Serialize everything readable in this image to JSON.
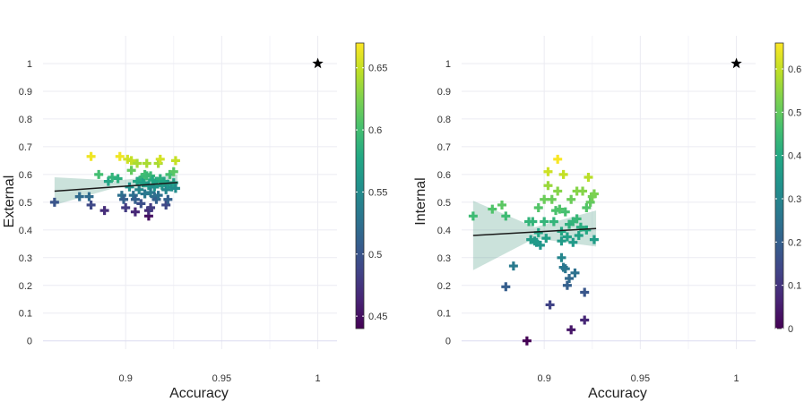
{
  "chart_data": [
    {
      "type": "scatter",
      "xlabel": "Accuracy",
      "ylabel": "External",
      "xlim": [
        0.857,
        1.01
      ],
      "ylim": [
        -0.03,
        1.1
      ],
      "x_ticks": [
        {
          "value": 0.9,
          "label": "0.9"
        },
        {
          "value": 0.95,
          "label": "0.95"
        },
        {
          "value": 1,
          "label": "1"
        }
      ],
      "y_ticks": [
        {
          "value": 0,
          "label": "0"
        },
        {
          "value": 0.1,
          "label": "0.1"
        },
        {
          "value": 0.2,
          "label": "0.2"
        },
        {
          "value": 0.3,
          "label": "0.3"
        },
        {
          "value": 0.4,
          "label": "0.4"
        },
        {
          "value": 0.5,
          "label": "0.5"
        },
        {
          "value": 0.6,
          "label": "0.6"
        },
        {
          "value": 0.7,
          "label": "0.7"
        },
        {
          "value": 0.8,
          "label": "0.8"
        },
        {
          "value": 0.9,
          "label": "0.9"
        },
        {
          "value": 1,
          "label": "1"
        }
      ],
      "colorbar": {
        "min": 0.44,
        "max": 0.67,
        "ticks": [
          {
            "value": 0.45,
            "label": "0.45"
          },
          {
            "value": 0.5,
            "label": "0.5"
          },
          {
            "value": 0.55,
            "label": "0.55"
          },
          {
            "value": 0.6,
            "label": "0.6"
          },
          {
            "value": 0.65,
            "label": "0.65"
          }
        ]
      },
      "ideal_point": {
        "x": 1,
        "y": 1,
        "marker": "star"
      },
      "trend": {
        "x": [
          0.863,
          0.927
        ],
        "y": [
          0.54,
          0.571
        ]
      },
      "band": {
        "x": [
          0.863,
          0.895,
          0.927
        ],
        "upper": [
          0.59,
          0.578,
          0.6
        ],
        "lower": [
          0.49,
          0.553,
          0.545
        ]
      },
      "points": [
        {
          "x": 0.863,
          "y": 0.5
        },
        {
          "x": 0.876,
          "y": 0.52
        },
        {
          "x": 0.881,
          "y": 0.52
        },
        {
          "x": 0.882,
          "y": 0.49
        },
        {
          "x": 0.882,
          "y": 0.665
        },
        {
          "x": 0.886,
          "y": 0.6
        },
        {
          "x": 0.889,
          "y": 0.47
        },
        {
          "x": 0.891,
          "y": 0.575
        },
        {
          "x": 0.893,
          "y": 0.59
        },
        {
          "x": 0.896,
          "y": 0.585
        },
        {
          "x": 0.897,
          "y": 0.665
        },
        {
          "x": 0.898,
          "y": 0.525
        },
        {
          "x": 0.899,
          "y": 0.51
        },
        {
          "x": 0.9,
          "y": 0.48
        },
        {
          "x": 0.901,
          "y": 0.655
        },
        {
          "x": 0.902,
          "y": 0.555
        },
        {
          "x": 0.903,
          "y": 0.615
        },
        {
          "x": 0.903,
          "y": 0.65
        },
        {
          "x": 0.904,
          "y": 0.525
        },
        {
          "x": 0.905,
          "y": 0.51
        },
        {
          "x": 0.905,
          "y": 0.465
        },
        {
          "x": 0.906,
          "y": 0.575
        },
        {
          "x": 0.906,
          "y": 0.64
        },
        {
          "x": 0.907,
          "y": 0.545
        },
        {
          "x": 0.908,
          "y": 0.495
        },
        {
          "x": 0.908,
          "y": 0.58
        },
        {
          "x": 0.909,
          "y": 0.59
        },
        {
          "x": 0.909,
          "y": 0.57
        },
        {
          "x": 0.91,
          "y": 0.53
        },
        {
          "x": 0.91,
          "y": 0.6
        },
        {
          "x": 0.911,
          "y": 0.595
        },
        {
          "x": 0.911,
          "y": 0.64
        },
        {
          "x": 0.912,
          "y": 0.45
        },
        {
          "x": 0.912,
          "y": 0.47
        },
        {
          "x": 0.912,
          "y": 0.56
        },
        {
          "x": 0.913,
          "y": 0.48
        },
        {
          "x": 0.913,
          "y": 0.535
        },
        {
          "x": 0.913,
          "y": 0.595
        },
        {
          "x": 0.914,
          "y": 0.58
        },
        {
          "x": 0.915,
          "y": 0.555
        },
        {
          "x": 0.915,
          "y": 0.52
        },
        {
          "x": 0.916,
          "y": 0.51
        },
        {
          "x": 0.916,
          "y": 0.575
        },
        {
          "x": 0.917,
          "y": 0.64
        },
        {
          "x": 0.917,
          "y": 0.525
        },
        {
          "x": 0.918,
          "y": 0.655
        },
        {
          "x": 0.918,
          "y": 0.585
        },
        {
          "x": 0.919,
          "y": 0.56
        },
        {
          "x": 0.92,
          "y": 0.575
        },
        {
          "x": 0.921,
          "y": 0.49
        },
        {
          "x": 0.921,
          "y": 0.545
        },
        {
          "x": 0.922,
          "y": 0.51
        },
        {
          "x": 0.922,
          "y": 0.565
        },
        {
          "x": 0.923,
          "y": 0.6
        },
        {
          "x": 0.924,
          "y": 0.555
        },
        {
          "x": 0.925,
          "y": 0.61
        },
        {
          "x": 0.925,
          "y": 0.57
        },
        {
          "x": 0.926,
          "y": 0.65
        },
        {
          "x": 0.926,
          "y": 0.55
        }
      ]
    },
    {
      "type": "scatter",
      "xlabel": "Accuracy",
      "ylabel": "Internal",
      "xlim": [
        0.857,
        1.01
      ],
      "ylim": [
        -0.03,
        1.1
      ],
      "x_ticks": [
        {
          "value": 0.9,
          "label": "0.9"
        },
        {
          "value": 0.95,
          "label": "0.95"
        },
        {
          "value": 1,
          "label": "1"
        }
      ],
      "y_ticks": [
        {
          "value": 0,
          "label": "0"
        },
        {
          "value": 0.1,
          "label": "0.1"
        },
        {
          "value": 0.2,
          "label": "0.2"
        },
        {
          "value": 0.3,
          "label": "0.3"
        },
        {
          "value": 0.4,
          "label": "0.4"
        },
        {
          "value": 0.5,
          "label": "0.5"
        },
        {
          "value": 0.6,
          "label": "0.6"
        },
        {
          "value": 0.7,
          "label": "0.7"
        },
        {
          "value": 0.8,
          "label": "0.8"
        },
        {
          "value": 0.9,
          "label": "0.9"
        },
        {
          "value": 1,
          "label": "1"
        }
      ],
      "colorbar": {
        "min": 0,
        "max": 0.66,
        "ticks": [
          {
            "value": 0,
            "label": "0"
          },
          {
            "value": 0.1,
            "label": "0.1"
          },
          {
            "value": 0.2,
            "label": "0.2"
          },
          {
            "value": 0.3,
            "label": "0.3"
          },
          {
            "value": 0.4,
            "label": "0.4"
          },
          {
            "value": 0.5,
            "label": "0.5"
          },
          {
            "value": 0.6,
            "label": "0.6"
          }
        ]
      },
      "ideal_point": {
        "x": 1,
        "y": 1,
        "marker": "star"
      },
      "trend": {
        "x": [
          0.863,
          0.927
        ],
        "y": [
          0.38,
          0.405
        ]
      },
      "band": {
        "x": [
          0.863,
          0.895,
          0.927
        ],
        "upper": [
          0.505,
          0.41,
          0.47
        ],
        "lower": [
          0.255,
          0.37,
          0.34
        ]
      },
      "points": [
        {
          "x": 0.863,
          "y": 0.45
        },
        {
          "x": 0.873,
          "y": 0.475
        },
        {
          "x": 0.878,
          "y": 0.49
        },
        {
          "x": 0.88,
          "y": 0.45
        },
        {
          "x": 0.88,
          "y": 0.195
        },
        {
          "x": 0.884,
          "y": 0.27
        },
        {
          "x": 0.891,
          "y": 0.0
        },
        {
          "x": 0.892,
          "y": 0.43
        },
        {
          "x": 0.893,
          "y": 0.365
        },
        {
          "x": 0.894,
          "y": 0.43
        },
        {
          "x": 0.895,
          "y": 0.36
        },
        {
          "x": 0.896,
          "y": 0.355
        },
        {
          "x": 0.897,
          "y": 0.39
        },
        {
          "x": 0.897,
          "y": 0.48
        },
        {
          "x": 0.898,
          "y": 0.345
        },
        {
          "x": 0.9,
          "y": 0.51
        },
        {
          "x": 0.9,
          "y": 0.43
        },
        {
          "x": 0.901,
          "y": 0.37
        },
        {
          "x": 0.902,
          "y": 0.56
        },
        {
          "x": 0.902,
          "y": 0.61
        },
        {
          "x": 0.903,
          "y": 0.13
        },
        {
          "x": 0.904,
          "y": 0.51
        },
        {
          "x": 0.905,
          "y": 0.43
        },
        {
          "x": 0.906,
          "y": 0.47
        },
        {
          "x": 0.907,
          "y": 0.655
        },
        {
          "x": 0.907,
          "y": 0.54
        },
        {
          "x": 0.908,
          "y": 0.475
        },
        {
          "x": 0.909,
          "y": 0.36
        },
        {
          "x": 0.909,
          "y": 0.395
        },
        {
          "x": 0.909,
          "y": 0.3
        },
        {
          "x": 0.91,
          "y": 0.6
        },
        {
          "x": 0.91,
          "y": 0.265
        },
        {
          "x": 0.911,
          "y": 0.465
        },
        {
          "x": 0.911,
          "y": 0.26
        },
        {
          "x": 0.912,
          "y": 0.2
        },
        {
          "x": 0.912,
          "y": 0.375
        },
        {
          "x": 0.913,
          "y": 0.42
        },
        {
          "x": 0.913,
          "y": 0.225
        },
        {
          "x": 0.914,
          "y": 0.04
        },
        {
          "x": 0.914,
          "y": 0.51
        },
        {
          "x": 0.915,
          "y": 0.43
        },
        {
          "x": 0.915,
          "y": 0.355
        },
        {
          "x": 0.916,
          "y": 0.245
        },
        {
          "x": 0.917,
          "y": 0.54
        },
        {
          "x": 0.917,
          "y": 0.44
        },
        {
          "x": 0.918,
          "y": 0.38
        },
        {
          "x": 0.919,
          "y": 0.41
        },
        {
          "x": 0.92,
          "y": 0.54
        },
        {
          "x": 0.921,
          "y": 0.175
        },
        {
          "x": 0.921,
          "y": 0.075
        },
        {
          "x": 0.922,
          "y": 0.4
        },
        {
          "x": 0.922,
          "y": 0.48
        },
        {
          "x": 0.923,
          "y": 0.59
        },
        {
          "x": 0.924,
          "y": 0.5
        },
        {
          "x": 0.925,
          "y": 0.52
        },
        {
          "x": 0.926,
          "y": 0.365
        },
        {
          "x": 0.926,
          "y": 0.53
        }
      ]
    }
  ]
}
